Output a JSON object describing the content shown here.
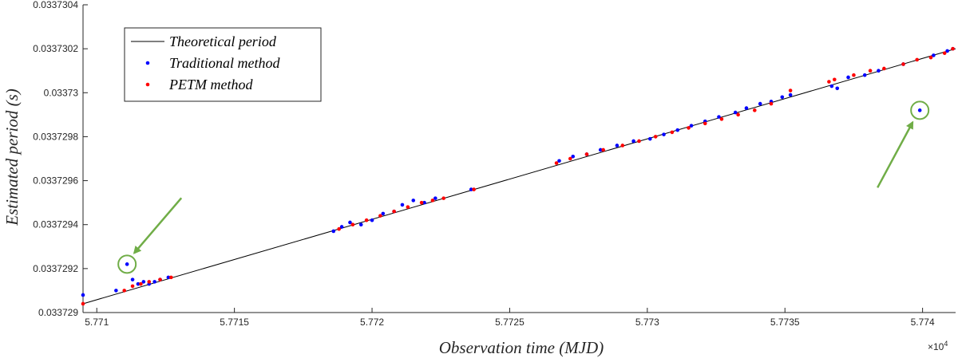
{
  "chart_data": {
    "type": "scatter",
    "xlabel": "Observation time (MJD)",
    "ylabel": "Estimated period (s)",
    "x_exponent_label": "×10",
    "x_exponent_power": "4",
    "xlim": [
      57709.5,
      57741.2
    ],
    "ylim": [
      0.033729,
      0.0337304
    ],
    "x_ticks": [
      57710,
      57715,
      57720,
      57725,
      57730,
      57735,
      57740
    ],
    "x_tick_labels": [
      "5.771",
      "5.7715",
      "5.772",
      "5.7725",
      "5.773",
      "5.7735",
      "5.774"
    ],
    "y_ticks": [
      0.033729,
      0.0337292,
      0.0337294,
      0.0337296,
      0.0337298,
      0.03373,
      0.0337302,
      0.0337304
    ],
    "y_tick_labels": [
      "0.033729",
      "0.0337292",
      "0.0337294",
      "0.0337296",
      "0.0337298",
      "0.03373",
      "0.0337302",
      "0.0337304"
    ],
    "legend_position": "top-left",
    "series": [
      {
        "name": "Theoretical period",
        "kind": "line",
        "color": "#000000",
        "x": [
          57709.5,
          57741.2
        ],
        "y": [
          0.03372904,
          0.0337302
        ]
      },
      {
        "name": "Traditional method",
        "kind": "points",
        "color": "#0000ff",
        "x": [
          57709.5,
          57710.7,
          57711.1,
          57711.3,
          57711.5,
          57711.7,
          57711.9,
          57712.1,
          57712.3,
          57712.6,
          57718.6,
          57718.9,
          57719.2,
          57719.6,
          57720.0,
          57720.4,
          57720.8,
          57721.1,
          57721.5,
          57721.9,
          57722.3,
          57723.6,
          57726.8,
          57727.3,
          57727.8,
          57728.3,
          57728.9,
          57729.5,
          57730.1,
          57730.6,
          57731.1,
          57731.6,
          57732.1,
          57732.6,
          57733.2,
          57733.6,
          57734.1,
          57734.5,
          57734.9,
          57735.2,
          57736.7,
          57736.9,
          57737.3,
          57737.9,
          57738.4,
          57739.3,
          57739.9,
          57740.4,
          57740.9,
          57741.1
        ],
        "y": [
          0.03372908,
          0.0337291,
          0.03372922,
          0.03372915,
          0.03372913,
          0.03372914,
          0.03372913,
          0.03372914,
          0.03372915,
          0.03372916,
          0.03372937,
          0.03372939,
          0.03372941,
          0.0337294,
          0.03372942,
          0.03372945,
          0.03372946,
          0.03372949,
          0.03372951,
          0.0337295,
          0.03372952,
          0.03372956,
          0.03372969,
          0.03372971,
          0.03372972,
          0.03372974,
          0.03372976,
          0.03372978,
          0.03372979,
          0.03372981,
          0.03372983,
          0.03372985,
          0.03372987,
          0.03372989,
          0.03372991,
          0.03372993,
          0.03372995,
          0.03372996,
          0.03372998,
          0.03372999,
          0.03373003,
          0.03373002,
          0.03373007,
          0.03373008,
          0.0337301,
          0.03373013,
          0.03372992,
          0.03373017,
          0.03373019,
          0.0337302
        ]
      },
      {
        "name": "PETM method",
        "kind": "points",
        "color": "#ff0000",
        "x": [
          57709.5,
          57711.0,
          57711.3,
          57711.6,
          57711.9,
          57712.3,
          57712.7,
          57718.8,
          57719.3,
          57719.8,
          57720.3,
          57720.8,
          57721.3,
          57721.8,
          57722.2,
          57722.6,
          57723.7,
          57726.7,
          57727.2,
          57727.8,
          57728.4,
          57729.1,
          57729.7,
          57730.3,
          57730.9,
          57731.5,
          57732.1,
          57732.7,
          57733.3,
          57733.9,
          57734.5,
          57735.2,
          57736.6,
          57736.8,
          57737.5,
          57738.1,
          57738.6,
          57739.3,
          57739.8,
          57740.3,
          57740.8,
          57741.1
        ],
        "y": [
          0.03372904,
          0.0337291,
          0.03372912,
          0.03372913,
          0.03372914,
          0.03372915,
          0.03372916,
          0.03372938,
          0.0337294,
          0.03372942,
          0.03372944,
          0.03372946,
          0.03372948,
          0.0337295,
          0.03372951,
          0.03372952,
          0.03372956,
          0.03372968,
          0.0337297,
          0.03372972,
          0.03372974,
          0.03372976,
          0.03372978,
          0.0337298,
          0.03372982,
          0.03372984,
          0.03372986,
          0.03372988,
          0.0337299,
          0.03372992,
          0.03372995,
          0.03373001,
          0.03373005,
          0.03373006,
          0.03373008,
          0.0337301,
          0.03373011,
          0.03373013,
          0.03373015,
          0.03373016,
          0.03373018,
          0.0337302
        ]
      }
    ],
    "annotations": [
      {
        "name": "outlier-circle-left",
        "x": 57711.1,
        "y": 0.03372922,
        "color": "#70ad47"
      },
      {
        "name": "outlier-circle-right",
        "x": 57739.9,
        "y": 0.03372992,
        "color": "#70ad47"
      }
    ]
  }
}
